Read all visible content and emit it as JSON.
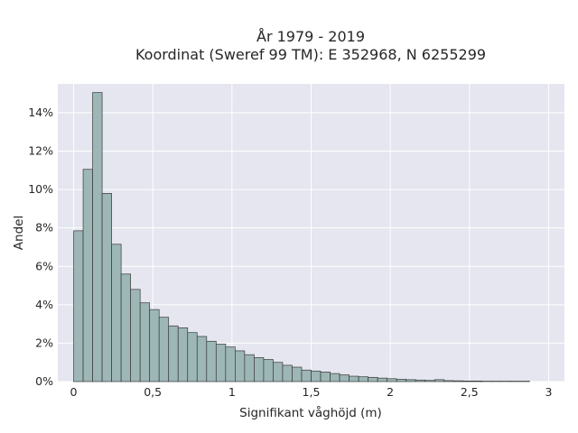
{
  "chart_data": {
    "type": "bar",
    "title_lines": [
      "År 1979 - 2019",
      "Koordinat (Sweref 99 TM): E 352968, N 6255299"
    ],
    "xlabel": "Signifikant våghöjd (m)",
    "ylabel": "Andel",
    "xlim": [
      -0.1,
      3.1
    ],
    "ylim": [
      0,
      15.5
    ],
    "grid": true,
    "x_ticks": [
      {
        "value": 0,
        "label": "0"
      },
      {
        "value": 0.5,
        "label": "0,5"
      },
      {
        "value": 1,
        "label": "1"
      },
      {
        "value": 1.5,
        "label": "1,5"
      },
      {
        "value": 2,
        "label": "2"
      },
      {
        "value": 2.5,
        "label": "2,5"
      },
      {
        "value": 3,
        "label": "3"
      }
    ],
    "y_ticks": [
      {
        "value": 0,
        "label": "0%"
      },
      {
        "value": 2,
        "label": "2%"
      },
      {
        "value": 4,
        "label": "4%"
      },
      {
        "value": 6,
        "label": "6%"
      },
      {
        "value": 8,
        "label": "8%"
      },
      {
        "value": 10,
        "label": "10%"
      },
      {
        "value": 12,
        "label": "12%"
      },
      {
        "value": 14,
        "label": "14%"
      }
    ],
    "bin_width": 0.06,
    "bin_starts": [
      0.0,
      0.06,
      0.12,
      0.18,
      0.24,
      0.3,
      0.36,
      0.42,
      0.48,
      0.54,
      0.6,
      0.66,
      0.72,
      0.78,
      0.84,
      0.9,
      0.96,
      1.02,
      1.08,
      1.14,
      1.2,
      1.26,
      1.32,
      1.38,
      1.44,
      1.5,
      1.56,
      1.62,
      1.68,
      1.74,
      1.8,
      1.86,
      1.92,
      1.98,
      2.04,
      2.1,
      2.16,
      2.22,
      2.28,
      2.34,
      2.4,
      2.46,
      2.52,
      2.58,
      2.64,
      2.7,
      2.76,
      2.82
    ],
    "values": [
      7.85,
      11.05,
      15.05,
      9.8,
      7.15,
      5.6,
      4.8,
      4.1,
      3.75,
      3.35,
      2.9,
      2.8,
      2.55,
      2.35,
      2.1,
      1.95,
      1.8,
      1.6,
      1.4,
      1.25,
      1.15,
      1.0,
      0.85,
      0.75,
      0.6,
      0.55,
      0.5,
      0.42,
      0.35,
      0.28,
      0.25,
      0.22,
      0.18,
      0.15,
      0.12,
      0.1,
      0.08,
      0.06,
      0.1,
      0.05,
      0.04,
      0.03,
      0.03,
      0.02,
      0.02,
      0.02,
      0.02,
      0.02
    ],
    "colors": {
      "plot_background": "#e5e6ef",
      "bar_fill": "#9db6b6",
      "bar_stroke": "#3a3a3a",
      "grid": "#ffffff"
    }
  }
}
